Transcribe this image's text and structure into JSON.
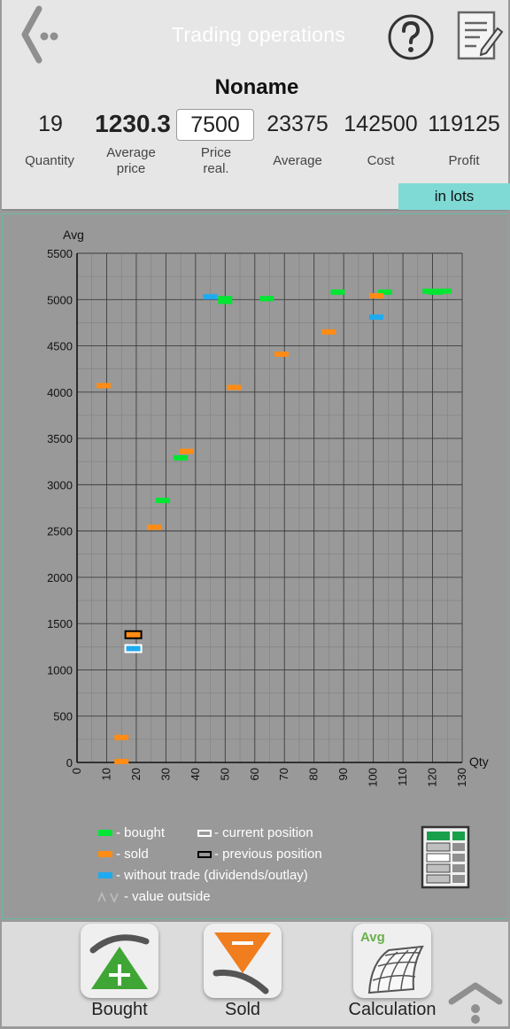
{
  "header": {
    "title": "Trading operations",
    "ticker": "Noname",
    "stats": {
      "quantity": {
        "value": "19",
        "label": "Quantity"
      },
      "average_price": {
        "value": "1230.3",
        "label_line1": "Average",
        "label_line2": "price"
      },
      "price_real": {
        "value": "7500",
        "label_line1": "Price",
        "label_line2": "real."
      },
      "average": {
        "value": "23375",
        "label": "Average"
      },
      "cost": {
        "value": "142500",
        "label": "Cost"
      },
      "profit": {
        "value": "119125",
        "label": "Profit"
      }
    },
    "lots_button": "in lots"
  },
  "colors": {
    "bought": "#00e632",
    "sold": "#ff8c14",
    "without_trade": "#1eaaf0",
    "current_position": "#ffffff",
    "previous_position": "#000000",
    "lots_accent": "#7fdad6"
  },
  "legend": {
    "bought": "- bought",
    "sold": "- sold",
    "without_trade": "- without trade (dividends/outlay)",
    "value_outside": "- value outside",
    "current_position": "- current position",
    "previous_position": "- previous position"
  },
  "chart_data": {
    "type": "scatter",
    "ylabel": "Avg",
    "xlabel": "Qty",
    "xlim": [
      0,
      130
    ],
    "ylim": [
      0,
      5500
    ],
    "x_ticks": [
      0,
      10,
      20,
      30,
      40,
      50,
      60,
      70,
      80,
      90,
      100,
      110,
      120,
      130
    ],
    "y_ticks": [
      0,
      500,
      1000,
      1500,
      2000,
      2500,
      3000,
      3500,
      4000,
      4500,
      5000,
      5500
    ],
    "grid": true,
    "series": [
      {
        "name": "bought",
        "points": [
          {
            "x": 35,
            "y": 3290
          },
          {
            "x": 29,
            "y": 2830
          },
          {
            "x": 50,
            "y": 5010
          },
          {
            "x": 50,
            "y": 4980
          },
          {
            "x": 64,
            "y": 5010
          },
          {
            "x": 88,
            "y": 5080
          },
          {
            "x": 104,
            "y": 5080
          },
          {
            "x": 119,
            "y": 5090
          },
          {
            "x": 121,
            "y": 5080
          },
          {
            "x": 124,
            "y": 5090
          }
        ]
      },
      {
        "name": "sold",
        "points": [
          {
            "x": 9,
            "y": 4070
          },
          {
            "x": 37,
            "y": 3360
          },
          {
            "x": 26,
            "y": 2540
          },
          {
            "x": 53,
            "y": 4050
          },
          {
            "x": 69,
            "y": 4410
          },
          {
            "x": 85,
            "y": 4650
          },
          {
            "x": 101,
            "y": 5040
          },
          {
            "x": 15,
            "y": 270
          },
          {
            "x": 15,
            "y": 10
          }
        ]
      },
      {
        "name": "without trade (dividends/outlay)",
        "points": [
          {
            "x": 45,
            "y": 5030
          },
          {
            "x": 101,
            "y": 4810
          }
        ]
      }
    ],
    "current_position": {
      "x": 19,
      "y": 1230
    },
    "previous_position": {
      "x": 19,
      "y": 1380
    }
  },
  "bottom_bar": {
    "bought_label": "Bought",
    "sold_label": "Sold",
    "calculation_label": "Calculation",
    "calculation_badge": "Avg"
  }
}
